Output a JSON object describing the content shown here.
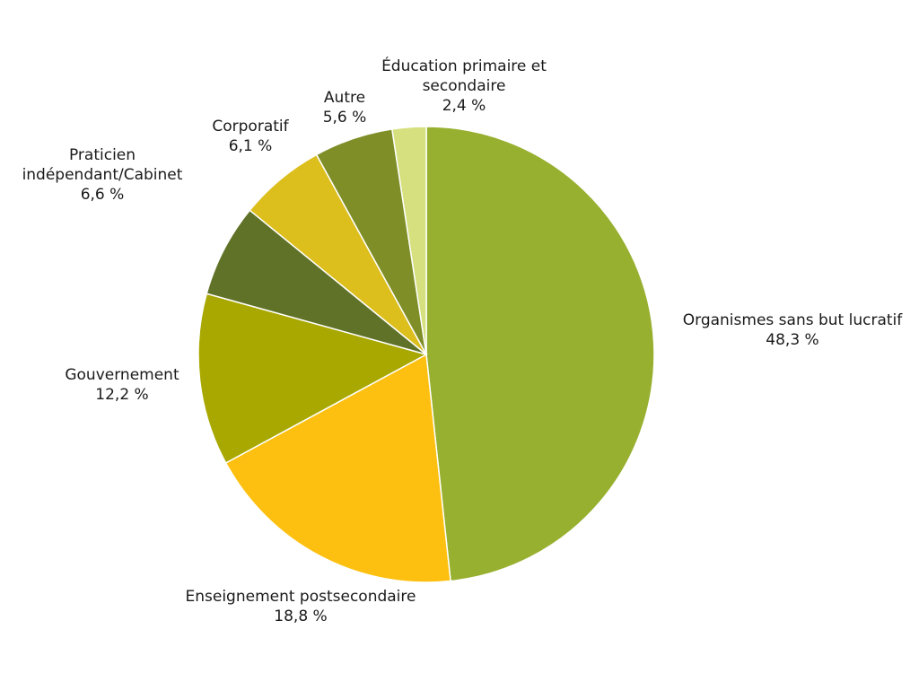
{
  "chart_data": {
    "type": "pie",
    "title": "",
    "slices": [
      {
        "label": [
          "Organismes sans but lucratif"
        ],
        "value": 48.3,
        "value_label": "48,3 %",
        "color": "#97b030"
      },
      {
        "label": [
          "Enseignement postsecondaire"
        ],
        "value": 18.8,
        "value_label": "18,8 %",
        "color": "#fdc010"
      },
      {
        "label": [
          "Gouvernement"
        ],
        "value": 12.2,
        "value_label": "12,2 %",
        "color": "#a9a800"
      },
      {
        "label": [
          "Praticien",
          "indépendant/Cabinet"
        ],
        "value": 6.6,
        "value_label": "6,6 %",
        "color": "#607228"
      },
      {
        "label": [
          "Corporatif"
        ],
        "value": 6.1,
        "value_label": "6,1 %",
        "color": "#dcbe1c"
      },
      {
        "label": [
          "Autre"
        ],
        "value": 5.6,
        "value_label": "5,6 %",
        "color": "#7f8e27"
      },
      {
        "label": [
          "Éducation primaire et",
          "secondaire"
        ],
        "value": 2.4,
        "value_label": "2,4 %",
        "color": "#d6e07e"
      }
    ]
  }
}
